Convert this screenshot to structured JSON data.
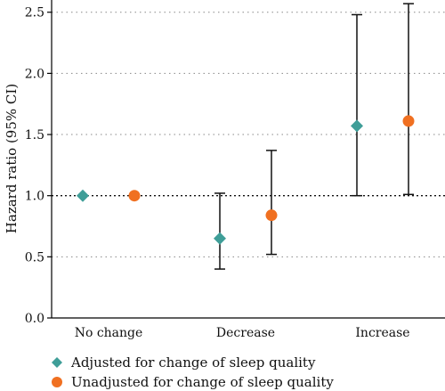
{
  "chart_data": {
    "type": "scatter",
    "ylabel": "Hazard ratio (95% CI)",
    "ylim": [
      0,
      2.6
    ],
    "yticks": [
      0.0,
      0.5,
      1.0,
      1.5,
      2.0,
      2.5
    ],
    "ytick_labels": [
      "0.0",
      "0.5",
      "1.0",
      "1.5",
      "2.0",
      "2.5"
    ],
    "categories": [
      "No change",
      "Decrease",
      "Increase"
    ],
    "reference_line": 1.0,
    "grid": "horizontal dotted",
    "legend_position": "bottom",
    "series": [
      {
        "name": "Adjusted for change of sleep quality",
        "marker": "diamond",
        "color": "#3f9e98",
        "points": [
          {
            "category": "No change",
            "value": 1.0,
            "ci": null
          },
          {
            "category": "Decrease",
            "value": 0.65,
            "ci": [
              0.4,
              1.02
            ]
          },
          {
            "category": "Increase",
            "value": 1.57,
            "ci": [
              1.0,
              2.48
            ]
          }
        ]
      },
      {
        "name": "Unadjusted for change of sleep quality",
        "marker": "circle",
        "color": "#f07021",
        "points": [
          {
            "category": "No change",
            "value": 1.0,
            "ci": null
          },
          {
            "category": "Decrease",
            "value": 0.84,
            "ci": [
              0.52,
              1.37
            ]
          },
          {
            "category": "Increase",
            "value": 1.61,
            "ci": [
              1.01,
              2.57
            ]
          }
        ]
      }
    ]
  }
}
